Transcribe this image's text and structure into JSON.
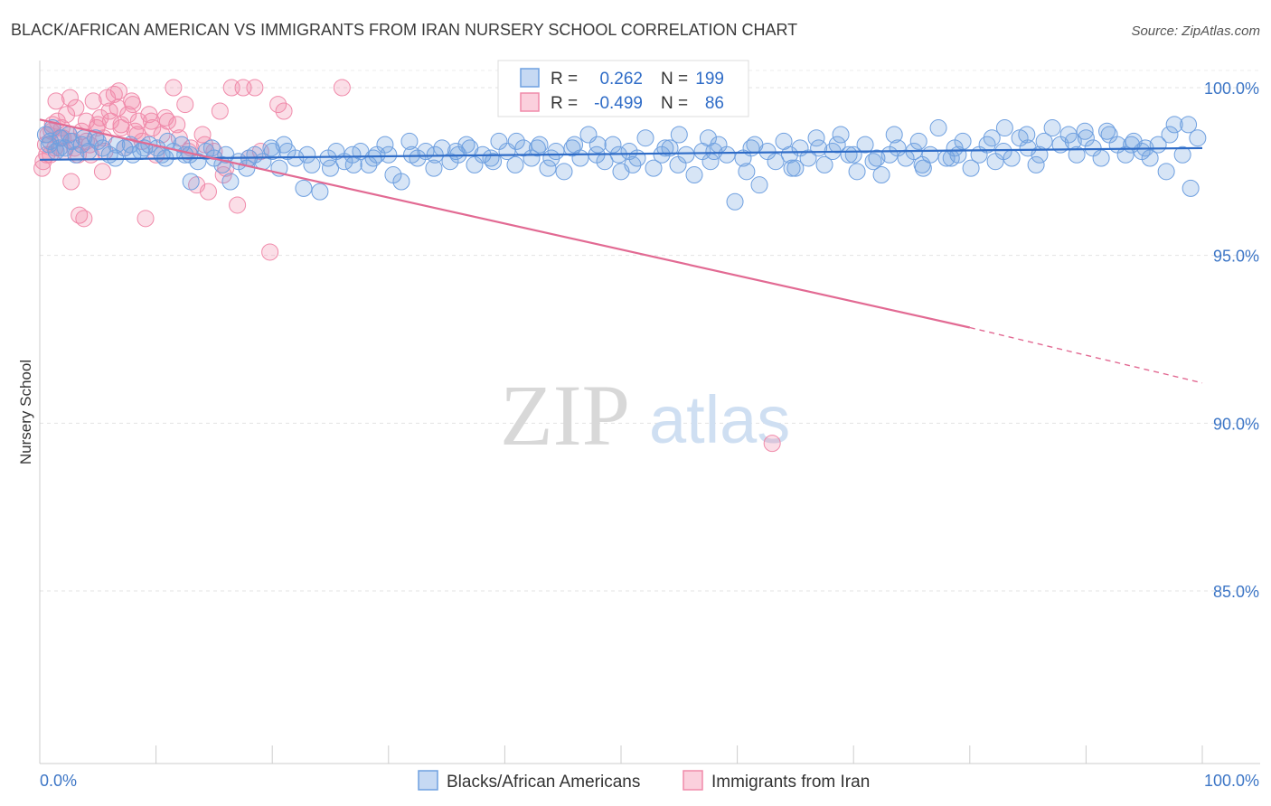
{
  "title": "BLACK/AFRICAN AMERICAN VS IMMIGRANTS FROM IRAN NURSERY SCHOOL CORRELATION CHART",
  "source": "Source: ZipAtlas.com",
  "watermark": {
    "zip": "ZIP",
    "atlas": "atlas"
  },
  "legend_box": {
    "r_label": "R =",
    "n_label": "N =",
    "rows": [
      {
        "r": "0.262",
        "n": "199",
        "color": "#6fa0e0"
      },
      {
        "r": "-0.499",
        "n": "86",
        "color": "#f08aaa"
      }
    ]
  },
  "bottom_legend": [
    {
      "label": "Blacks/African Americans",
      "color": "#6fa0e0"
    },
    {
      "label": "Immigrants from Iran",
      "color": "#f08aaa"
    }
  ],
  "chart_data": {
    "type": "scatter",
    "title": "BLACK/AFRICAN AMERICAN VS IMMIGRANTS FROM IRAN NURSERY SCHOOL CORRELATION CHART",
    "xlabel": "",
    "ylabel": "Nursery School",
    "xlim": [
      0,
      100
    ],
    "ylim": [
      80.5,
      100.5
    ],
    "x_ticks": [
      "0.0%",
      "100.0%"
    ],
    "y_ticks": [
      {
        "value": 100,
        "label": "100.0%"
      },
      {
        "value": 95,
        "label": "95.0%"
      },
      {
        "value": 90,
        "label": "90.0%"
      },
      {
        "value": 85,
        "label": "85.0%"
      }
    ],
    "grid": true,
    "legend_placement": "top-center",
    "series": [
      {
        "name": "Blacks/African Americans",
        "color": "#6fa0e0",
        "trend": {
          "x": [
            0,
            100
          ],
          "y": [
            97.85,
            98.2
          ],
          "style": "solid"
        },
        "points": [
          [
            0.5,
            98.6
          ],
          [
            0.8,
            98.3
          ],
          [
            1.1,
            98.8
          ],
          [
            1.4,
            98.1
          ],
          [
            1.8,
            98.5
          ],
          [
            2.2,
            98.2
          ],
          [
            2.7,
            98.4
          ],
          [
            3.1,
            98.0
          ],
          [
            3.6,
            98.3
          ],
          [
            4.2,
            98.1
          ],
          [
            4.8,
            98.5
          ],
          [
            5.4,
            98.2
          ],
          [
            6.0,
            98.0
          ],
          [
            6.6,
            98.3
          ],
          [
            7.3,
            98.2
          ],
          [
            8.0,
            98.0
          ],
          [
            8.7,
            98.1
          ],
          [
            9.4,
            98.3
          ],
          [
            10.1,
            98.2
          ],
          [
            10.8,
            97.9
          ],
          [
            11.5,
            98.1
          ],
          [
            12.2,
            98.3
          ],
          [
            12.9,
            98.0
          ],
          [
            13.6,
            97.8
          ],
          [
            14.3,
            98.1
          ],
          [
            15.0,
            97.9
          ],
          [
            15.7,
            97.7
          ],
          [
            16.4,
            97.2
          ],
          [
            17.1,
            97.8
          ],
          [
            17.8,
            97.6
          ],
          [
            18.5,
            98.0
          ],
          [
            19.2,
            97.8
          ],
          [
            19.9,
            98.2
          ],
          [
            20.6,
            97.6
          ],
          [
            21.3,
            98.1
          ],
          [
            22.0,
            97.9
          ],
          [
            22.7,
            97.0
          ],
          [
            23.4,
            97.7
          ],
          [
            24.1,
            96.9
          ],
          [
            24.8,
            97.9
          ],
          [
            25.5,
            98.1
          ],
          [
            26.2,
            97.8
          ],
          [
            26.9,
            98.0
          ],
          [
            27.6,
            98.1
          ],
          [
            28.3,
            97.7
          ],
          [
            29.0,
            98.0
          ],
          [
            29.7,
            98.3
          ],
          [
            30.4,
            97.4
          ],
          [
            31.1,
            97.2
          ],
          [
            31.8,
            98.4
          ],
          [
            32.5,
            97.9
          ],
          [
            33.2,
            98.1
          ],
          [
            33.9,
            97.6
          ],
          [
            34.6,
            98.2
          ],
          [
            35.3,
            97.8
          ],
          [
            36.0,
            98.0
          ],
          [
            36.7,
            98.3
          ],
          [
            37.4,
            97.7
          ],
          [
            38.1,
            98.0
          ],
          [
            38.8,
            97.9
          ],
          [
            39.5,
            98.4
          ],
          [
            40.2,
            98.1
          ],
          [
            40.9,
            97.7
          ],
          [
            41.6,
            98.2
          ],
          [
            42.3,
            97.9
          ],
          [
            43.0,
            98.3
          ],
          [
            43.7,
            97.6
          ],
          [
            44.4,
            98.1
          ],
          [
            45.1,
            97.5
          ],
          [
            45.8,
            98.2
          ],
          [
            46.5,
            97.9
          ],
          [
            47.2,
            98.6
          ],
          [
            47.9,
            98.0
          ],
          [
            48.6,
            97.8
          ],
          [
            49.3,
            98.3
          ],
          [
            50.0,
            97.5
          ],
          [
            50.7,
            98.1
          ],
          [
            51.4,
            97.9
          ],
          [
            52.1,
            98.5
          ],
          [
            52.8,
            97.6
          ],
          [
            53.5,
            98.0
          ],
          [
            54.2,
            98.2
          ],
          [
            54.9,
            97.7
          ],
          [
            55.6,
            98.0
          ],
          [
            56.3,
            97.4
          ],
          [
            57.0,
            98.1
          ],
          [
            57.7,
            97.8
          ],
          [
            58.4,
            98.3
          ],
          [
            59.1,
            98.0
          ],
          [
            59.8,
            96.6
          ],
          [
            60.5,
            97.9
          ],
          [
            61.2,
            98.2
          ],
          [
            61.9,
            97.1
          ],
          [
            62.6,
            98.1
          ],
          [
            63.3,
            97.8
          ],
          [
            64.0,
            98.4
          ],
          [
            64.7,
            97.6
          ],
          [
            65.4,
            98.2
          ],
          [
            66.1,
            97.9
          ],
          [
            66.8,
            98.5
          ],
          [
            67.5,
            97.7
          ],
          [
            68.2,
            98.1
          ],
          [
            68.9,
            98.6
          ],
          [
            69.6,
            98.0
          ],
          [
            70.3,
            97.5
          ],
          [
            71.0,
            98.3
          ],
          [
            71.7,
            97.8
          ],
          [
            72.4,
            97.4
          ],
          [
            73.1,
            98.0
          ],
          [
            73.8,
            98.2
          ],
          [
            74.5,
            97.9
          ],
          [
            75.2,
            98.1
          ],
          [
            75.9,
            97.7
          ],
          [
            76.6,
            98.0
          ],
          [
            77.3,
            98.8
          ],
          [
            78.0,
            97.9
          ],
          [
            78.7,
            98.2
          ],
          [
            79.4,
            98.4
          ],
          [
            80.1,
            97.6
          ],
          [
            80.8,
            98.0
          ],
          [
            81.5,
            98.3
          ],
          [
            82.2,
            97.8
          ],
          [
            82.9,
            98.1
          ],
          [
            83.6,
            97.9
          ],
          [
            84.3,
            98.5
          ],
          [
            85.0,
            98.2
          ],
          [
            85.7,
            97.7
          ],
          [
            86.4,
            98.4
          ],
          [
            87.1,
            98.8
          ],
          [
            87.8,
            98.3
          ],
          [
            88.5,
            98.6
          ],
          [
            89.2,
            98.0
          ],
          [
            89.9,
            98.7
          ],
          [
            90.6,
            98.2
          ],
          [
            91.3,
            97.9
          ],
          [
            92.0,
            98.6
          ],
          [
            92.7,
            98.3
          ],
          [
            93.4,
            98.0
          ],
          [
            94.1,
            98.4
          ],
          [
            94.8,
            98.1
          ],
          [
            95.5,
            97.9
          ],
          [
            96.2,
            98.3
          ],
          [
            96.9,
            97.5
          ],
          [
            97.6,
            98.9
          ],
          [
            98.3,
            98.0
          ],
          [
            99.0,
            97.0
          ],
          [
            99.6,
            98.5
          ],
          [
            98.8,
            98.9
          ],
          [
            93.9,
            98.3
          ],
          [
            90.0,
            98.5
          ],
          [
            86.0,
            98.0
          ],
          [
            83.0,
            98.8
          ],
          [
            79.0,
            98.0
          ],
          [
            76.0,
            97.6
          ],
          [
            73.5,
            98.6
          ],
          [
            70.0,
            98.0
          ],
          [
            67.0,
            98.2
          ],
          [
            64.5,
            98.0
          ],
          [
            61.5,
            98.3
          ],
          [
            58.0,
            98.1
          ],
          [
            55.0,
            98.6
          ],
          [
            51.0,
            97.7
          ],
          [
            48.0,
            98.3
          ],
          [
            44.0,
            97.9
          ],
          [
            41.0,
            98.4
          ],
          [
            37.0,
            98.2
          ],
          [
            34.0,
            98.0
          ],
          [
            30.0,
            98.0
          ],
          [
            27.0,
            97.7
          ],
          [
            23.0,
            98.0
          ],
          [
            20.0,
            98.1
          ],
          [
            16.0,
            98.0
          ],
          [
            13.0,
            97.2
          ],
          [
            11.0,
            98.4
          ],
          [
            9.0,
            98.2
          ],
          [
            6.5,
            97.9
          ],
          [
            3.8,
            98.5
          ],
          [
            1.7,
            98.2
          ],
          [
            0.9,
            98.4
          ],
          [
            2.5,
            98.6
          ],
          [
            5.0,
            98.4
          ],
          [
            7.8,
            98.3
          ],
          [
            10.5,
            98.0
          ],
          [
            12.5,
            98.0
          ],
          [
            14.8,
            98.2
          ],
          [
            18.0,
            97.9
          ],
          [
            21.0,
            98.3
          ],
          [
            25.0,
            97.6
          ],
          [
            28.7,
            97.9
          ],
          [
            32.0,
            98.0
          ],
          [
            35.8,
            98.1
          ],
          [
            39.0,
            97.8
          ],
          [
            42.8,
            98.2
          ],
          [
            46.0,
            98.3
          ],
          [
            49.8,
            98.0
          ],
          [
            53.8,
            98.2
          ],
          [
            57.5,
            98.5
          ],
          [
            60.8,
            97.5
          ],
          [
            65.0,
            97.6
          ],
          [
            68.6,
            98.3
          ],
          [
            72.0,
            97.9
          ],
          [
            75.6,
            98.4
          ],
          [
            78.4,
            97.9
          ],
          [
            81.9,
            98.5
          ],
          [
            84.9,
            98.6
          ],
          [
            88.9,
            98.4
          ],
          [
            91.8,
            98.7
          ],
          [
            95.1,
            98.2
          ],
          [
            97.2,
            98.6
          ]
        ]
      },
      {
        "name": "Immigrants from Iran",
        "color": "#f08aaa",
        "trend": {
          "x": [
            0,
            80,
            100
          ],
          "y": [
            99.05,
            92.85,
            91.2
          ],
          "solid_until": 80
        },
        "points": [
          [
            0.3,
            97.8
          ],
          [
            0.5,
            98.3
          ],
          [
            0.7,
            98.6
          ],
          [
            0.9,
            98.0
          ],
          [
            1.1,
            98.9
          ],
          [
            1.3,
            98.2
          ],
          [
            1.5,
            99.0
          ],
          [
            1.7,
            98.5
          ],
          [
            1.9,
            98.8
          ],
          [
            2.1,
            98.1
          ],
          [
            2.3,
            99.2
          ],
          [
            2.5,
            98.6
          ],
          [
            2.7,
            97.2
          ],
          [
            2.9,
            98.4
          ],
          [
            3.1,
            99.4
          ],
          [
            3.3,
            98.0
          ],
          [
            3.6,
            98.7
          ],
          [
            3.8,
            96.1
          ],
          [
            4.0,
            99.0
          ],
          [
            4.3,
            98.3
          ],
          [
            4.6,
            99.6
          ],
          [
            4.9,
            98.8
          ],
          [
            5.2,
            99.1
          ],
          [
            5.5,
            98.5
          ],
          [
            5.8,
            99.7
          ],
          [
            6.1,
            99.0
          ],
          [
            6.4,
            99.8
          ],
          [
            6.7,
            99.4
          ],
          [
            7.0,
            98.9
          ],
          [
            7.3,
            98.2
          ],
          [
            7.6,
            99.2
          ],
          [
            7.9,
            99.6
          ],
          [
            8.2,
            98.7
          ],
          [
            8.5,
            99.0
          ],
          [
            8.8,
            98.4
          ],
          [
            9.1,
            96.1
          ],
          [
            9.4,
            99.2
          ],
          [
            9.7,
            98.8
          ],
          [
            10.0,
            98.0
          ],
          [
            10.5,
            98.6
          ],
          [
            11.0,
            99.0
          ],
          [
            11.5,
            100.0
          ],
          [
            12.0,
            98.5
          ],
          [
            12.5,
            99.5
          ],
          [
            13.0,
            98.2
          ],
          [
            13.5,
            97.1
          ],
          [
            14.0,
            98.6
          ],
          [
            14.5,
            96.9
          ],
          [
            15.0,
            98.1
          ],
          [
            15.5,
            99.3
          ],
          [
            16.0,
            97.6
          ],
          [
            16.5,
            100.0
          ],
          [
            17.0,
            96.5
          ],
          [
            17.5,
            100.0
          ],
          [
            18.0,
            97.9
          ],
          [
            18.5,
            100.0
          ],
          [
            19.0,
            98.1
          ],
          [
            19.8,
            95.1
          ],
          [
            20.5,
            99.5
          ],
          [
            21.0,
            99.3
          ],
          [
            26.0,
            100.0
          ],
          [
            63.0,
            89.4
          ],
          [
            1.0,
            98.7
          ],
          [
            2.0,
            98.5
          ],
          [
            3.0,
            98.2
          ],
          [
            4.0,
            98.4
          ],
          [
            5.0,
            98.9
          ],
          [
            6.0,
            99.3
          ],
          [
            7.0,
            98.8
          ],
          [
            8.0,
            99.5
          ],
          [
            1.4,
            99.6
          ],
          [
            2.6,
            99.7
          ],
          [
            3.4,
            96.2
          ],
          [
            4.4,
            98.0
          ],
          [
            5.6,
            98.1
          ],
          [
            6.8,
            99.9
          ],
          [
            8.4,
            98.6
          ],
          [
            9.6,
            99.0
          ],
          [
            10.8,
            99.1
          ],
          [
            11.8,
            98.9
          ],
          [
            12.8,
            98.1
          ],
          [
            14.2,
            98.3
          ],
          [
            0.2,
            97.6
          ],
          [
            15.8,
            97.4
          ],
          [
            5.4,
            97.5
          ],
          [
            0.6,
            98.0
          ]
        ]
      }
    ]
  }
}
